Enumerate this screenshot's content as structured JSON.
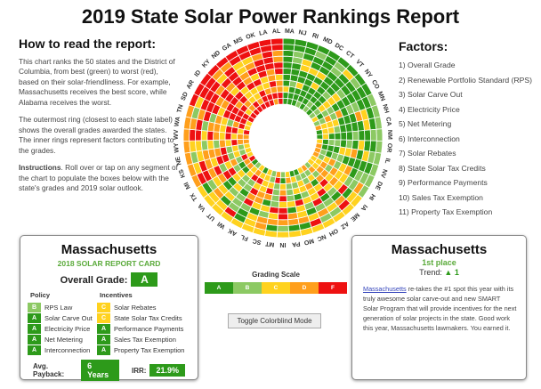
{
  "title": "2019 State Solar Power Rankings Report",
  "howto": {
    "heading": "How to read the report:",
    "p1": "This chart ranks the 50 states and the District of Columbia, from best (green) to worst (red), based on their solar-friendliness. For example, Massachusetts receives the best score, while Alabama receives the worst.",
    "p2": "The outermost ring (closest to each state label) shows the overall grades awarded the states. The inner rings represent factors contributing to the grades.",
    "p3_bold": "Instructions",
    "p3": ". Roll over or tap on any segment of the chart to populate the boxes below with the state's grades and 2019 solar outlook."
  },
  "factors": {
    "heading": "Factors:",
    "items": [
      "1) Overall Grade",
      "2) Renewable Portfolio Standard (RPS)",
      "3) Solar Carve Out",
      "4) Electricity Price",
      "5) Net Metering",
      "6) Interconnection",
      "7) Solar Rebates",
      "8) State Solar Tax Credits",
      "9) Performance Payments",
      "10) Sales Tax Exemption",
      "11) Property Tax Exemption"
    ]
  },
  "colors": {
    "A": "#2d9a1a",
    "B": "#8cc963",
    "C": "#ffd21f",
    "D": "#ff9f1c",
    "F": "#ee1111"
  },
  "chart": {
    "states": [
      "MA",
      "NJ",
      "RI",
      "MD",
      "DC",
      "CT",
      "VT",
      "NY",
      "CO",
      "MN",
      "NH",
      "CA",
      "NM",
      "OR",
      "IL",
      "NV",
      "DE",
      "HI",
      "IA",
      "ME",
      "AZ",
      "OH",
      "NC",
      "MO",
      "PA",
      "IN",
      "MT",
      "SC",
      "FL",
      "AK",
      "WI",
      "UT",
      "VA",
      "TX",
      "MI",
      "KS",
      "NE",
      "WY",
      "WV",
      "WA",
      "TN",
      "SD",
      "AR",
      "ID",
      "KY",
      "ND",
      "GA",
      "MS",
      "OK",
      "LA",
      "AL"
    ],
    "overall": [
      "A",
      "A",
      "A",
      "A",
      "A",
      "A",
      "A",
      "A",
      "A",
      "B",
      "B",
      "B",
      "B",
      "B",
      "B",
      "B",
      "B",
      "B",
      "C",
      "C",
      "C",
      "C",
      "C",
      "C",
      "C",
      "C",
      "C",
      "C",
      "C",
      "C",
      "C",
      "C",
      "C",
      "C",
      "D",
      "D",
      "D",
      "D",
      "D",
      "D",
      "D",
      "F",
      "F",
      "F",
      "F",
      "F",
      "F",
      "F",
      "F",
      "F",
      "F"
    ]
  },
  "card": {
    "state": "Massachusetts",
    "subtitle": "2018 SOLAR REPORT CARD",
    "overall_label": "Overall Grade:",
    "overall": "A",
    "policy_heading": "Policy",
    "incentives_heading": "Incentives",
    "policy": [
      {
        "g": "B",
        "label": "RPS Law"
      },
      {
        "g": "A",
        "label": "Solar Carve Out"
      },
      {
        "g": "A",
        "label": "Electricity Price"
      },
      {
        "g": "A",
        "label": "Net Metering"
      },
      {
        "g": "A",
        "label": "Interconnection"
      }
    ],
    "incentives": [
      {
        "g": "C",
        "label": "Solar Rebates"
      },
      {
        "g": "C",
        "label": "State Solar Tax Credits"
      },
      {
        "g": "A",
        "label": "Performance Payments"
      },
      {
        "g": "A",
        "label": "Sales Tax Exemption"
      },
      {
        "g": "A",
        "label": "Property Tax Exemption"
      }
    ],
    "payback_label": "Avg. Payback:",
    "payback": "6 Years",
    "irr_label": "IRR:",
    "irr": "21.9%"
  },
  "scale": {
    "heading": "Grading Scale",
    "grades": [
      "A",
      "B",
      "C",
      "D",
      "F"
    ],
    "toggle": "Toggle Colorblind Mode"
  },
  "detail": {
    "state": "Massachusetts",
    "place": "1st place",
    "trend_label": "Trend:",
    "trend_icon": "triangle-up",
    "trend": "1",
    "link": "Massachusetts",
    "text": " re-takes the #1 spot this year with its truly awesome solar carve-out and new SMART Solar Program that will provide incentives for the next generation of solar projects in the state. Good work this year, Massachusetts lawmakers. You earned it."
  }
}
